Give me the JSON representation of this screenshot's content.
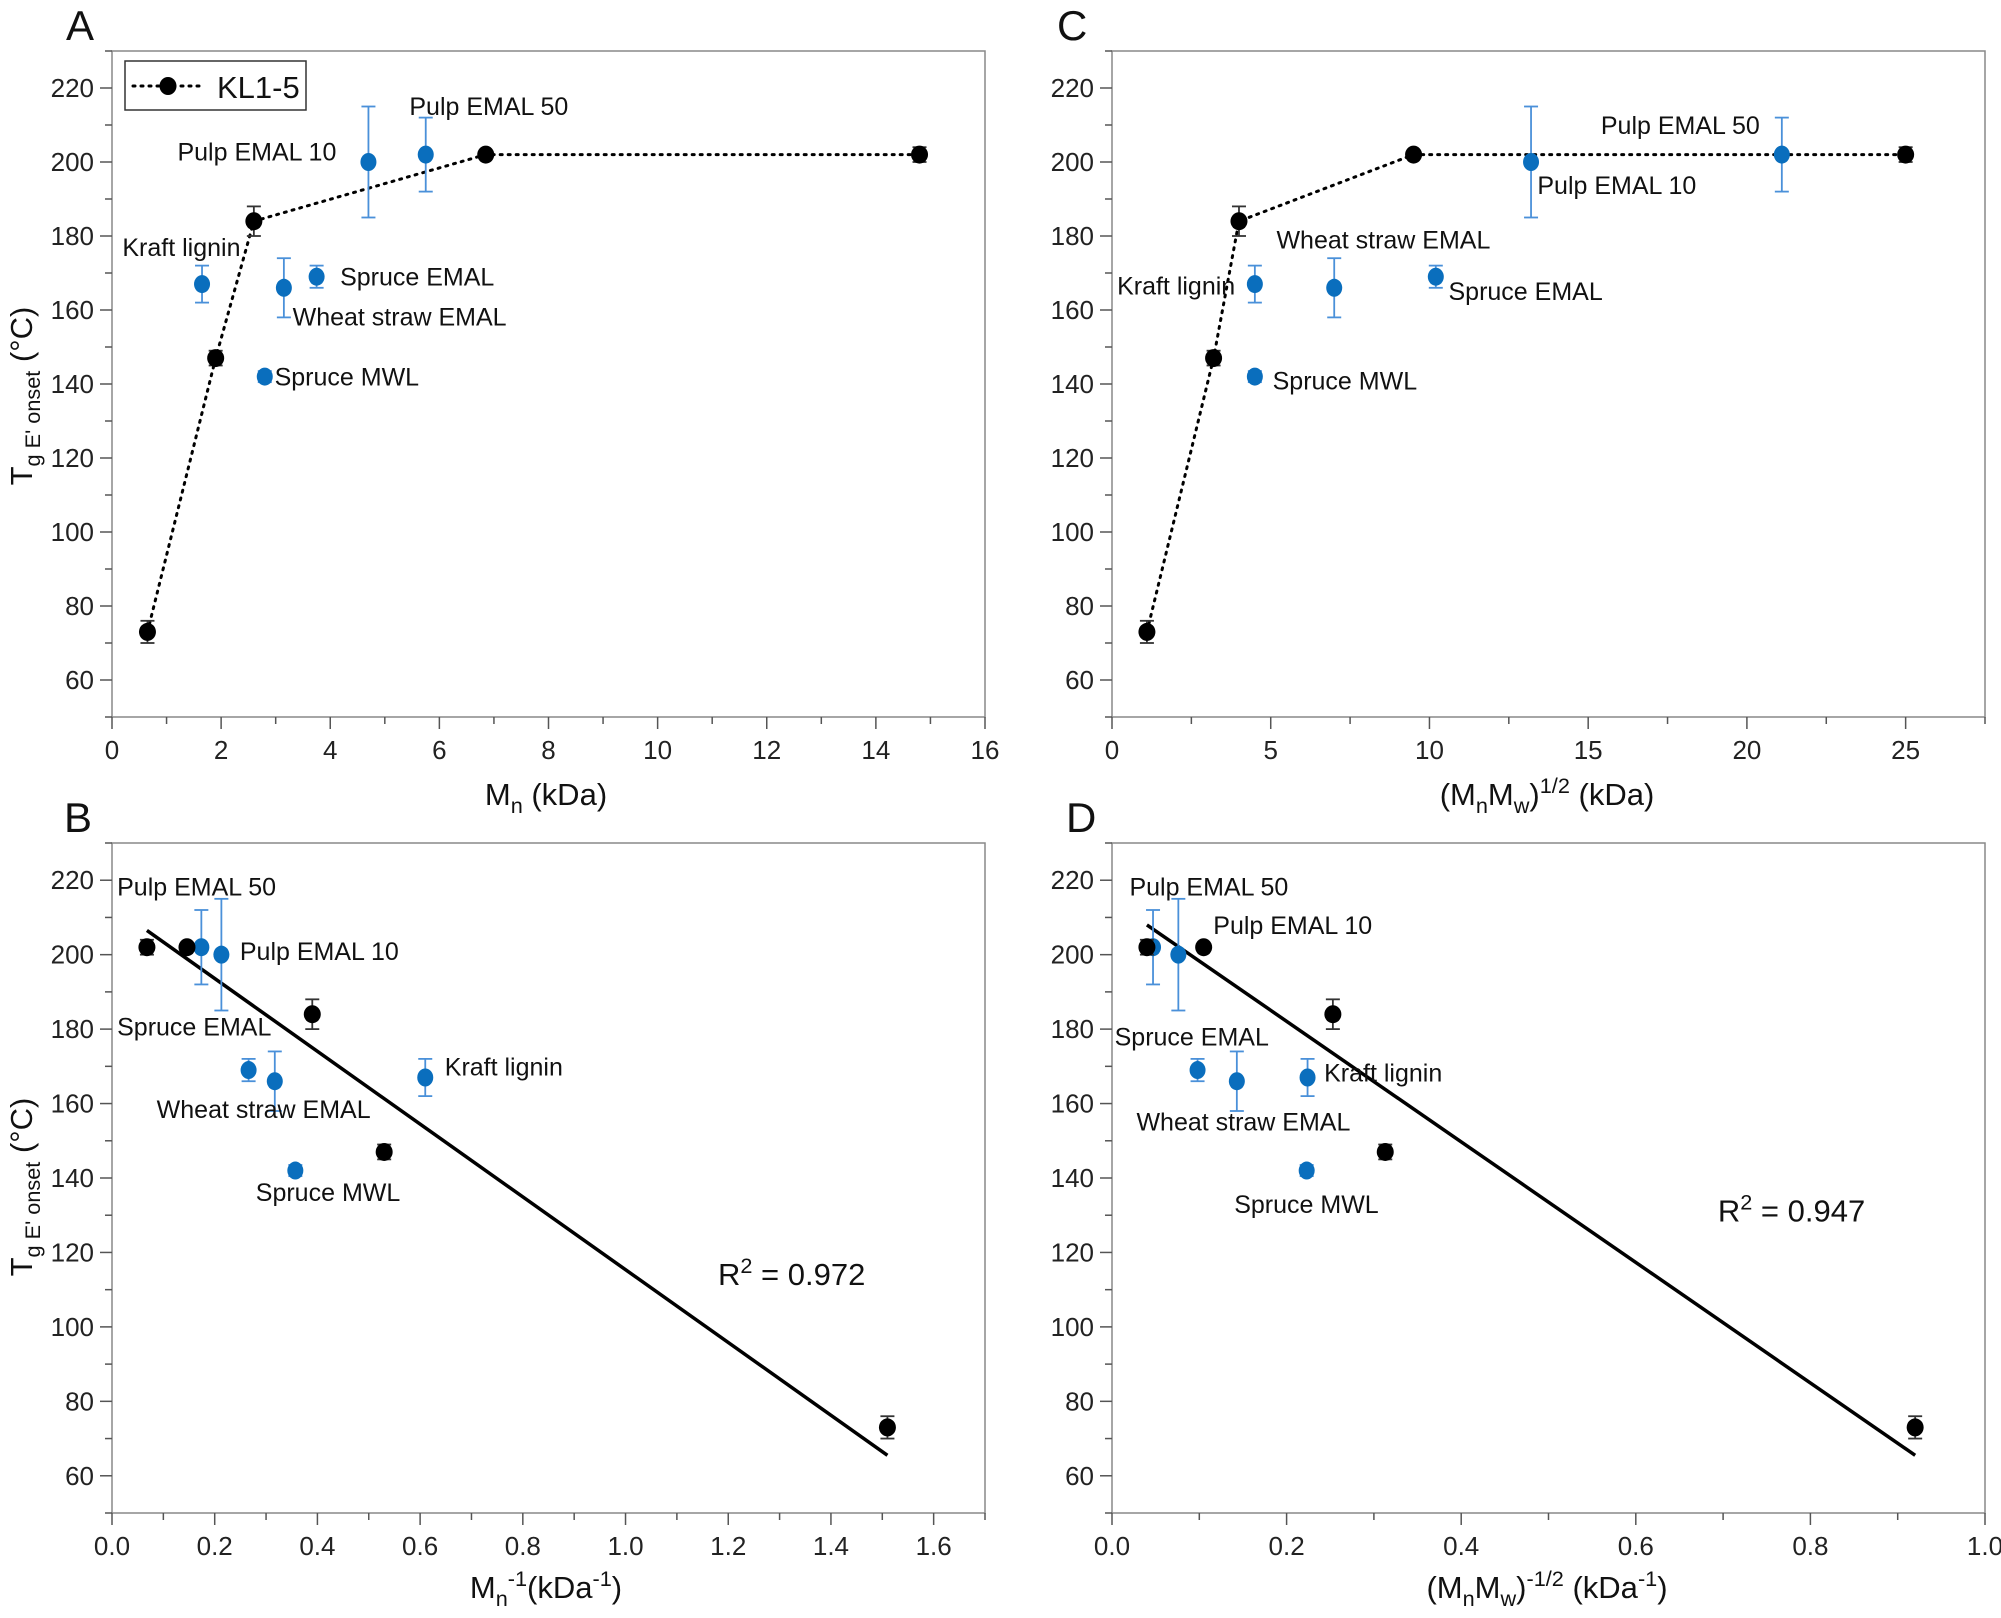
{
  "colors": {
    "kl_series": "#000000",
    "lignin_samples": "#0A6EBD",
    "error_bar_blue": "#4A90D9",
    "fit_line": "#000000"
  },
  "legend": {
    "label": "KL1-5",
    "placement": "top-left (panel A)"
  },
  "chart_data": [
    {
      "panel": "A",
      "type": "scatter",
      "xlabel": [
        {
          "t": "M"
        },
        {
          "t": "n",
          "s": "sub"
        },
        {
          "t": " (kDa)"
        }
      ],
      "ylabel": [
        {
          "t": "T"
        },
        {
          "t": "g E' onset",
          "s": "sub"
        },
        {
          "t": " (°C)"
        }
      ],
      "xlim": [
        0,
        16
      ],
      "ylim": [
        50,
        230
      ],
      "xticks": [
        0,
        2,
        4,
        6,
        8,
        10,
        12,
        14,
        16
      ],
      "xminor": 1,
      "yticks": [
        60,
        80,
        100,
        120,
        140,
        160,
        180,
        200,
        220
      ],
      "yminor": 10,
      "kl_series": {
        "name": "KL1-5",
        "line": "dotted",
        "points": [
          {
            "x": 0.65,
            "y": 73,
            "err": 3
          },
          {
            "x": 1.9,
            "y": 147,
            "err": 2
          },
          {
            "x": 2.6,
            "y": 184,
            "err": 4
          },
          {
            "x": 6.85,
            "y": 202,
            "err": 0
          },
          {
            "x": 14.8,
            "y": 202,
            "err": 2
          }
        ]
      },
      "samples": [
        {
          "name": "Kraft lignin",
          "x": 1.65,
          "y": 167,
          "err": 5
        },
        {
          "name": "Spruce MWL",
          "x": 2.8,
          "y": 142,
          "err": 1.5
        },
        {
          "name": "Wheat straw EMAL",
          "x": 3.15,
          "y": 166,
          "err": 8
        },
        {
          "name": "Spruce EMAL",
          "x": 3.75,
          "y": 169,
          "err": 3
        },
        {
          "name": "Pulp EMAL 10",
          "x": 4.7,
          "y": 200,
          "err": 15
        },
        {
          "name": "Pulp EMAL 50",
          "x": 5.75,
          "y": 202,
          "err": 10
        }
      ],
      "annotations": [
        {
          "text": "Pulp EMAL 50",
          "x": 5.45,
          "y": 215.2
        },
        {
          "text": "Pulp EMAL 10",
          "x": 1.2,
          "y": 202.8
        },
        {
          "text": "Kraft lignin",
          "x": 0.19,
          "y": 177
        },
        {
          "text": "Spruce EMAL",
          "x": 4.18,
          "y": 169
        },
        {
          "text": "Wheat straw EMAL",
          "x": 3.31,
          "y": 158.3
        },
        {
          "text": "Spruce MWL",
          "x": 2.98,
          "y": 142
        }
      ]
    },
    {
      "panel": "B",
      "type": "scatter",
      "xlabel": [
        {
          "t": "M"
        },
        {
          "t": "n",
          "s": "sub"
        },
        {
          "t": "-1",
          "s": "sup"
        },
        {
          "t": "(kDa"
        },
        {
          "t": "-1",
          "s": "sup"
        },
        {
          "t": ")"
        }
      ],
      "ylabel": [
        {
          "t": "T"
        },
        {
          "t": "g E' onset",
          "s": "sub"
        },
        {
          "t": " (°C)"
        }
      ],
      "xlim": [
        0,
        1.7
      ],
      "ylim": [
        50,
        230
      ],
      "xticks": [
        0.0,
        0.2,
        0.4,
        0.6,
        0.8,
        1.0,
        1.2,
        1.4,
        1.6
      ],
      "xminor": 0.1,
      "xdecimals": 1,
      "yticks": [
        60,
        80,
        100,
        120,
        140,
        160,
        180,
        200,
        220
      ],
      "yminor": 10,
      "kl_series": {
        "name": "KL1-5",
        "line": "none",
        "points": [
          {
            "x": 1.51,
            "y": 73,
            "err": 3
          },
          {
            "x": 0.53,
            "y": 147,
            "err": 2
          },
          {
            "x": 0.39,
            "y": 184,
            "err": 4
          },
          {
            "x": 0.146,
            "y": 202,
            "err": 0
          },
          {
            "x": 0.068,
            "y": 202,
            "err": 2
          }
        ]
      },
      "samples": [
        {
          "name": "Kraft lignin",
          "x": 0.61,
          "y": 167,
          "err": 5
        },
        {
          "name": "Spruce MWL",
          "x": 0.357,
          "y": 142,
          "err": 1.5
        },
        {
          "name": "Wheat straw EMAL",
          "x": 0.317,
          "y": 166,
          "err": 8
        },
        {
          "name": "Spruce EMAL",
          "x": 0.266,
          "y": 169,
          "err": 3
        },
        {
          "name": "Pulp EMAL 10",
          "x": 0.213,
          "y": 200,
          "err": 15
        },
        {
          "name": "Pulp EMAL 50",
          "x": 0.174,
          "y": 202,
          "err": 10
        }
      ],
      "fit": {
        "x1": 0.068,
        "y1": 206.5,
        "x2": 1.51,
        "y2": 65.5
      },
      "annotations": [
        {
          "text": "Pulp EMAL 50",
          "x": 0.01,
          "y": 218.3
        },
        {
          "text": "Pulp EMAL 10",
          "x": 0.249,
          "y": 201
        },
        {
          "text": "Spruce EMAL",
          "x": 0.01,
          "y": 180.7
        },
        {
          "text": "Kraft lignin",
          "x": 0.648,
          "y": 170
        },
        {
          "text": "Wheat straw EMAL",
          "x": 0.087,
          "y": 158.6
        },
        {
          "text": "Spruce MWL",
          "x": 0.28,
          "y": 136.2
        }
      ],
      "r2": {
        "label": "R",
        "sup": "2",
        "value": " = 0.972",
        "x": 1.18,
        "y": 114
      }
    },
    {
      "panel": "C",
      "type": "scatter",
      "xlabel": [
        {
          "t": "(M"
        },
        {
          "t": "n",
          "s": "sub"
        },
        {
          "t": "M"
        },
        {
          "t": "w",
          "s": "sub"
        },
        {
          "t": ")"
        },
        {
          "t": "1/2",
          "s": "sup"
        },
        {
          "t": " (kDa)"
        }
      ],
      "xlim": [
        0,
        27.5
      ],
      "ylim": [
        50,
        230
      ],
      "xticks": [
        0,
        5,
        10,
        15,
        20,
        25
      ],
      "xminor": 2.5,
      "yticks": [
        60,
        80,
        100,
        120,
        140,
        160,
        180,
        200,
        220
      ],
      "yminor": 10,
      "kl_series": {
        "name": "KL1-5",
        "line": "dotted",
        "points": [
          {
            "x": 1.1,
            "y": 73,
            "err": 3
          },
          {
            "x": 3.2,
            "y": 147,
            "err": 2
          },
          {
            "x": 4.0,
            "y": 184,
            "err": 4
          },
          {
            "x": 9.5,
            "y": 202,
            "err": 0
          },
          {
            "x": 25.0,
            "y": 202,
            "err": 2
          }
        ]
      },
      "samples": [
        {
          "name": "Kraft lignin",
          "x": 4.5,
          "y": 167,
          "err": 5
        },
        {
          "name": "Spruce MWL",
          "x": 4.5,
          "y": 142,
          "err": 1.5
        },
        {
          "name": "Wheat straw EMAL",
          "x": 7.0,
          "y": 166,
          "err": 8
        },
        {
          "name": "Spruce EMAL",
          "x": 10.2,
          "y": 169,
          "err": 3
        },
        {
          "name": "Pulp EMAL 10",
          "x": 13.2,
          "y": 200,
          "err": 15
        },
        {
          "name": "Pulp EMAL 50",
          "x": 21.1,
          "y": 202,
          "err": 10
        }
      ],
      "annotations": [
        {
          "text": "Pulp EMAL 50",
          "x": 15.4,
          "y": 210
        },
        {
          "text": "Pulp EMAL 10",
          "x": 13.4,
          "y": 193.8
        },
        {
          "text": "Wheat straw EMAL",
          "x": 5.18,
          "y": 179
        },
        {
          "text": "Kraft lignin",
          "x": 0.16,
          "y": 166.6
        },
        {
          "text": "Spruce EMAL",
          "x": 10.6,
          "y": 165.2
        },
        {
          "text": "Spruce MWL",
          "x": 5.06,
          "y": 141
        }
      ]
    },
    {
      "panel": "D",
      "type": "scatter",
      "xlabel": [
        {
          "t": "(M"
        },
        {
          "t": "n",
          "s": "sub"
        },
        {
          "t": "M"
        },
        {
          "t": "w",
          "s": "sub"
        },
        {
          "t": ")"
        },
        {
          "t": "-1/2",
          "s": "sup"
        },
        {
          "t": " (kDa"
        },
        {
          "t": "-1",
          "s": "sup"
        },
        {
          "t": ")"
        }
      ],
      "xlim": [
        0,
        1.0
      ],
      "ylim": [
        50,
        230
      ],
      "xticks": [
        0.0,
        0.2,
        0.4,
        0.6,
        0.8,
        1.0
      ],
      "xminor": 0.1,
      "xdecimals": 1,
      "yticks": [
        60,
        80,
        100,
        120,
        140,
        160,
        180,
        200,
        220
      ],
      "yminor": 10,
      "kl_series": {
        "name": "KL1-5",
        "line": "none",
        "points": [
          {
            "x": 0.92,
            "y": 73,
            "err": 3
          },
          {
            "x": 0.313,
            "y": 147,
            "err": 2
          },
          {
            "x": 0.253,
            "y": 184,
            "err": 4
          },
          {
            "x": 0.105,
            "y": 202,
            "err": 0
          },
          {
            "x": 0.04,
            "y": 202,
            "err": 2
          }
        ]
      },
      "samples": [
        {
          "name": "Kraft lignin",
          "x": 0.224,
          "y": 167,
          "err": 5
        },
        {
          "name": "Spruce MWL",
          "x": 0.223,
          "y": 142,
          "err": 1.5
        },
        {
          "name": "Wheat straw EMAL",
          "x": 0.143,
          "y": 166,
          "err": 8
        },
        {
          "name": "Spruce EMAL",
          "x": 0.098,
          "y": 169,
          "err": 3
        },
        {
          "name": "Pulp EMAL 10",
          "x": 0.076,
          "y": 200,
          "err": 15
        },
        {
          "name": "Pulp EMAL 50",
          "x": 0.047,
          "y": 202,
          "err": 10
        }
      ],
      "fit": {
        "x1": 0.04,
        "y1": 208,
        "x2": 0.92,
        "y2": 65.5
      },
      "annotations": [
        {
          "text": "Pulp EMAL 50",
          "x": 0.02,
          "y": 218.3
        },
        {
          "text": "Pulp EMAL 10",
          "x": 0.116,
          "y": 208
        },
        {
          "text": "Spruce EMAL",
          "x": 0.003,
          "y": 178
        },
        {
          "text": "Kraft lignin",
          "x": 0.243,
          "y": 168.3
        },
        {
          "text": "Wheat straw EMAL",
          "x": 0.028,
          "y": 155.2
        },
        {
          "text": "Spruce MWL",
          "x": 0.14,
          "y": 133
        }
      ],
      "r2": {
        "label": "R",
        "sup": "2",
        "value": " = 0.947",
        "x": 0.694,
        "y": 131
      }
    }
  ]
}
